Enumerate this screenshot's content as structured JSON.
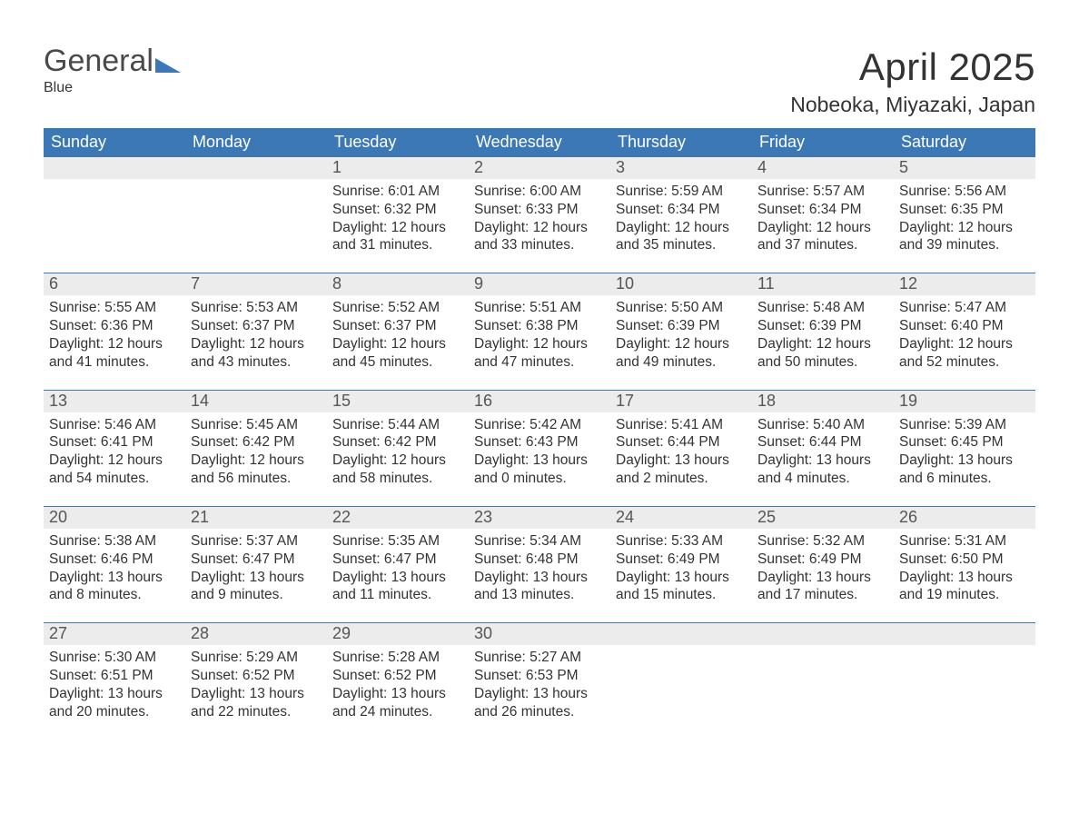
{
  "brand": {
    "part1": "General",
    "part2": "Blue",
    "flag_color": "#3b78b5",
    "text_gray": "#4a4a4a"
  },
  "title": "April 2025",
  "subtitle": "Nobeoka, Miyazaki, Japan",
  "colors": {
    "header_bg": "#3b78b5",
    "header_text": "#ffffff",
    "daynum_bg": "#ececec",
    "daynum_text": "#555555",
    "body_text": "#333333",
    "week_divider": "#3b78b5",
    "page_bg": "#ffffff"
  },
  "fonts": {
    "title_size_pt": 32,
    "subtitle_size_pt": 17,
    "dow_size_pt": 14,
    "daynum_size_pt": 14,
    "body_size_pt": 12
  },
  "days_of_week": [
    "Sunday",
    "Monday",
    "Tuesday",
    "Wednesday",
    "Thursday",
    "Friday",
    "Saturday"
  ],
  "weeks": [
    [
      {
        "empty": true
      },
      {
        "empty": true
      },
      {
        "n": "1",
        "sunrise": "Sunrise: 6:01 AM",
        "sunset": "Sunset: 6:32 PM",
        "dl1": "Daylight: 12 hours",
        "dl2": "and 31 minutes."
      },
      {
        "n": "2",
        "sunrise": "Sunrise: 6:00 AM",
        "sunset": "Sunset: 6:33 PM",
        "dl1": "Daylight: 12 hours",
        "dl2": "and 33 minutes."
      },
      {
        "n": "3",
        "sunrise": "Sunrise: 5:59 AM",
        "sunset": "Sunset: 6:34 PM",
        "dl1": "Daylight: 12 hours",
        "dl2": "and 35 minutes."
      },
      {
        "n": "4",
        "sunrise": "Sunrise: 5:57 AM",
        "sunset": "Sunset: 6:34 PM",
        "dl1": "Daylight: 12 hours",
        "dl2": "and 37 minutes."
      },
      {
        "n": "5",
        "sunrise": "Sunrise: 5:56 AM",
        "sunset": "Sunset: 6:35 PM",
        "dl1": "Daylight: 12 hours",
        "dl2": "and 39 minutes."
      }
    ],
    [
      {
        "n": "6",
        "sunrise": "Sunrise: 5:55 AM",
        "sunset": "Sunset: 6:36 PM",
        "dl1": "Daylight: 12 hours",
        "dl2": "and 41 minutes."
      },
      {
        "n": "7",
        "sunrise": "Sunrise: 5:53 AM",
        "sunset": "Sunset: 6:37 PM",
        "dl1": "Daylight: 12 hours",
        "dl2": "and 43 minutes."
      },
      {
        "n": "8",
        "sunrise": "Sunrise: 5:52 AM",
        "sunset": "Sunset: 6:37 PM",
        "dl1": "Daylight: 12 hours",
        "dl2": "and 45 minutes."
      },
      {
        "n": "9",
        "sunrise": "Sunrise: 5:51 AM",
        "sunset": "Sunset: 6:38 PM",
        "dl1": "Daylight: 12 hours",
        "dl2": "and 47 minutes."
      },
      {
        "n": "10",
        "sunrise": "Sunrise: 5:50 AM",
        "sunset": "Sunset: 6:39 PM",
        "dl1": "Daylight: 12 hours",
        "dl2": "and 49 minutes."
      },
      {
        "n": "11",
        "sunrise": "Sunrise: 5:48 AM",
        "sunset": "Sunset: 6:39 PM",
        "dl1": "Daylight: 12 hours",
        "dl2": "and 50 minutes."
      },
      {
        "n": "12",
        "sunrise": "Sunrise: 5:47 AM",
        "sunset": "Sunset: 6:40 PM",
        "dl1": "Daylight: 12 hours",
        "dl2": "and 52 minutes."
      }
    ],
    [
      {
        "n": "13",
        "sunrise": "Sunrise: 5:46 AM",
        "sunset": "Sunset: 6:41 PM",
        "dl1": "Daylight: 12 hours",
        "dl2": "and 54 minutes."
      },
      {
        "n": "14",
        "sunrise": "Sunrise: 5:45 AM",
        "sunset": "Sunset: 6:42 PM",
        "dl1": "Daylight: 12 hours",
        "dl2": "and 56 minutes."
      },
      {
        "n": "15",
        "sunrise": "Sunrise: 5:44 AM",
        "sunset": "Sunset: 6:42 PM",
        "dl1": "Daylight: 12 hours",
        "dl2": "and 58 minutes."
      },
      {
        "n": "16",
        "sunrise": "Sunrise: 5:42 AM",
        "sunset": "Sunset: 6:43 PM",
        "dl1": "Daylight: 13 hours",
        "dl2": "and 0 minutes."
      },
      {
        "n": "17",
        "sunrise": "Sunrise: 5:41 AM",
        "sunset": "Sunset: 6:44 PM",
        "dl1": "Daylight: 13 hours",
        "dl2": "and 2 minutes."
      },
      {
        "n": "18",
        "sunrise": "Sunrise: 5:40 AM",
        "sunset": "Sunset: 6:44 PM",
        "dl1": "Daylight: 13 hours",
        "dl2": "and 4 minutes."
      },
      {
        "n": "19",
        "sunrise": "Sunrise: 5:39 AM",
        "sunset": "Sunset: 6:45 PM",
        "dl1": "Daylight: 13 hours",
        "dl2": "and 6 minutes."
      }
    ],
    [
      {
        "n": "20",
        "sunrise": "Sunrise: 5:38 AM",
        "sunset": "Sunset: 6:46 PM",
        "dl1": "Daylight: 13 hours",
        "dl2": "and 8 minutes."
      },
      {
        "n": "21",
        "sunrise": "Sunrise: 5:37 AM",
        "sunset": "Sunset: 6:47 PM",
        "dl1": "Daylight: 13 hours",
        "dl2": "and 9 minutes."
      },
      {
        "n": "22",
        "sunrise": "Sunrise: 5:35 AM",
        "sunset": "Sunset: 6:47 PM",
        "dl1": "Daylight: 13 hours",
        "dl2": "and 11 minutes."
      },
      {
        "n": "23",
        "sunrise": "Sunrise: 5:34 AM",
        "sunset": "Sunset: 6:48 PM",
        "dl1": "Daylight: 13 hours",
        "dl2": "and 13 minutes."
      },
      {
        "n": "24",
        "sunrise": "Sunrise: 5:33 AM",
        "sunset": "Sunset: 6:49 PM",
        "dl1": "Daylight: 13 hours",
        "dl2": "and 15 minutes."
      },
      {
        "n": "25",
        "sunrise": "Sunrise: 5:32 AM",
        "sunset": "Sunset: 6:49 PM",
        "dl1": "Daylight: 13 hours",
        "dl2": "and 17 minutes."
      },
      {
        "n": "26",
        "sunrise": "Sunrise: 5:31 AM",
        "sunset": "Sunset: 6:50 PM",
        "dl1": "Daylight: 13 hours",
        "dl2": "and 19 minutes."
      }
    ],
    [
      {
        "n": "27",
        "sunrise": "Sunrise: 5:30 AM",
        "sunset": "Sunset: 6:51 PM",
        "dl1": "Daylight: 13 hours",
        "dl2": "and 20 minutes."
      },
      {
        "n": "28",
        "sunrise": "Sunrise: 5:29 AM",
        "sunset": "Sunset: 6:52 PM",
        "dl1": "Daylight: 13 hours",
        "dl2": "and 22 minutes."
      },
      {
        "n": "29",
        "sunrise": "Sunrise: 5:28 AM",
        "sunset": "Sunset: 6:52 PM",
        "dl1": "Daylight: 13 hours",
        "dl2": "and 24 minutes."
      },
      {
        "n": "30",
        "sunrise": "Sunrise: 5:27 AM",
        "sunset": "Sunset: 6:53 PM",
        "dl1": "Daylight: 13 hours",
        "dl2": "and 26 minutes."
      },
      {
        "empty": true
      },
      {
        "empty": true
      },
      {
        "empty": true
      }
    ]
  ]
}
